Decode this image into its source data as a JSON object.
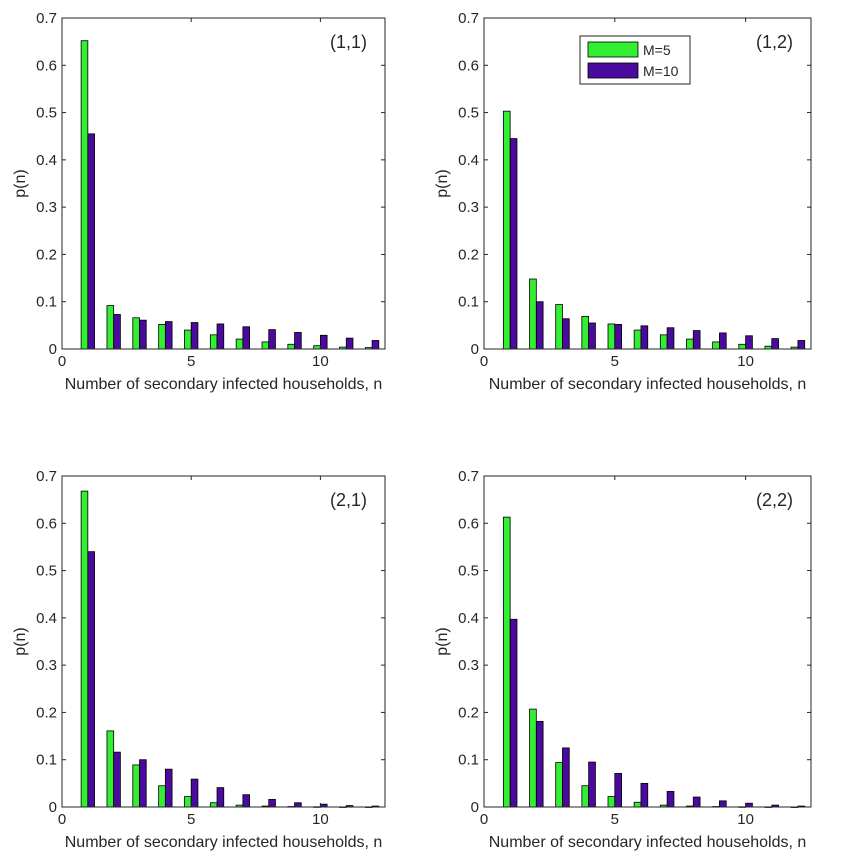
{
  "chart_data": [
    {
      "type": "bar",
      "panel_label": "(1,1)",
      "xlabel": "Number of secondary infected households, n",
      "ylabel": "p(n)",
      "xlim": [
        0,
        12.5
      ],
      "ylim": [
        0,
        0.7
      ],
      "xticks": [
        0,
        5,
        10
      ],
      "yticks": [
        0,
        0.1,
        0.2,
        0.3,
        0.4,
        0.5,
        0.6,
        0.7
      ],
      "categories": [
        1,
        2,
        3,
        4,
        5,
        6,
        7,
        8,
        9,
        10,
        11,
        12
      ],
      "series": [
        {
          "name": "M=5",
          "color": "#33ee33",
          "values": [
            0.652,
            0.092,
            0.066,
            0.052,
            0.04,
            0.03,
            0.021,
            0.015,
            0.01,
            0.007,
            0.004,
            0.003
          ]
        },
        {
          "name": "M=10",
          "color": "#4b0a9e",
          "values": [
            0.455,
            0.073,
            0.061,
            0.058,
            0.056,
            0.053,
            0.047,
            0.041,
            0.035,
            0.029,
            0.023,
            0.018
          ]
        }
      ],
      "legend": false
    },
    {
      "type": "bar",
      "panel_label": "(1,2)",
      "xlabel": "Number of secondary infected households, n",
      "ylabel": "p(n)",
      "xlim": [
        0,
        12.5
      ],
      "ylim": [
        0,
        0.7
      ],
      "xticks": [
        0,
        5,
        10
      ],
      "yticks": [
        0,
        0.1,
        0.2,
        0.3,
        0.4,
        0.5,
        0.6,
        0.7
      ],
      "categories": [
        1,
        2,
        3,
        4,
        5,
        6,
        7,
        8,
        9,
        10,
        11,
        12
      ],
      "series": [
        {
          "name": "M=5",
          "color": "#33ee33",
          "values": [
            0.503,
            0.148,
            0.094,
            0.069,
            0.053,
            0.04,
            0.03,
            0.021,
            0.015,
            0.01,
            0.006,
            0.004
          ]
        },
        {
          "name": "M=10",
          "color": "#4b0a9e",
          "values": [
            0.445,
            0.1,
            0.064,
            0.055,
            0.052,
            0.049,
            0.045,
            0.039,
            0.034,
            0.028,
            0.022,
            0.018
          ]
        }
      ],
      "legend": true,
      "legend_position": "top-center"
    },
    {
      "type": "bar",
      "panel_label": "(2,1)",
      "xlabel": "Number of secondary infected households, n",
      "ylabel": "p(n)",
      "xlim": [
        0,
        12.5
      ],
      "ylim": [
        0,
        0.7
      ],
      "xticks": [
        0,
        5,
        10
      ],
      "yticks": [
        0,
        0.1,
        0.2,
        0.3,
        0.4,
        0.5,
        0.6,
        0.7
      ],
      "categories": [
        1,
        2,
        3,
        4,
        5,
        6,
        7,
        8,
        9,
        10,
        11,
        12
      ],
      "series": [
        {
          "name": "M=5",
          "color": "#33ee33",
          "values": [
            0.668,
            0.161,
            0.089,
            0.045,
            0.022,
            0.009,
            0.004,
            0.002,
            0.001,
            0.0005,
            0.0003,
            0.0002
          ]
        },
        {
          "name": "M=10",
          "color": "#4b0a9e",
          "values": [
            0.54,
            0.116,
            0.1,
            0.08,
            0.059,
            0.041,
            0.026,
            0.016,
            0.009,
            0.006,
            0.003,
            0.002
          ]
        }
      ],
      "legend": false
    },
    {
      "type": "bar",
      "panel_label": "(2,2)",
      "xlabel": "Number of secondary infected households, n",
      "ylabel": "p(n)",
      "xlim": [
        0,
        12.5
      ],
      "ylim": [
        0,
        0.7
      ],
      "xticks": [
        0,
        5,
        10
      ],
      "yticks": [
        0,
        0.1,
        0.2,
        0.3,
        0.4,
        0.5,
        0.6,
        0.7
      ],
      "categories": [
        1,
        2,
        3,
        4,
        5,
        6,
        7,
        8,
        9,
        10,
        11,
        12
      ],
      "series": [
        {
          "name": "M=5",
          "color": "#33ee33",
          "values": [
            0.613,
            0.207,
            0.094,
            0.045,
            0.022,
            0.01,
            0.004,
            0.002,
            0.001,
            0.0005,
            0.0003,
            0.0002
          ]
        },
        {
          "name": "M=10",
          "color": "#4b0a9e",
          "values": [
            0.397,
            0.181,
            0.125,
            0.095,
            0.071,
            0.05,
            0.033,
            0.021,
            0.013,
            0.008,
            0.004,
            0.002
          ]
        }
      ],
      "legend": false
    }
  ]
}
